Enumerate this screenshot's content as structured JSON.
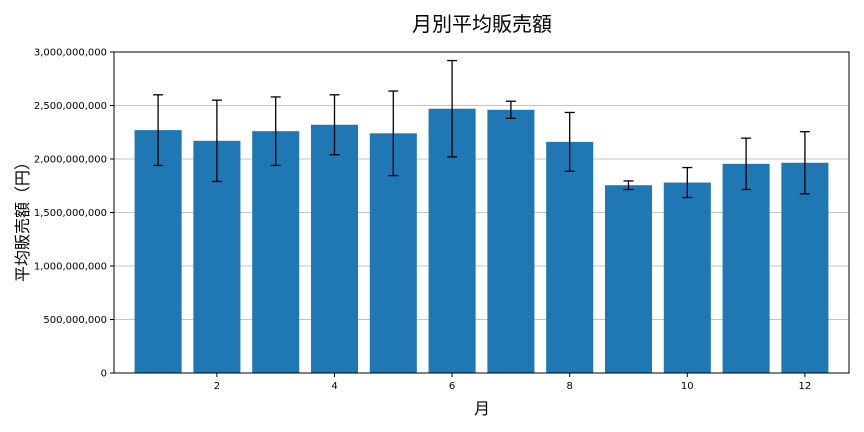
{
  "chart_data": {
    "type": "bar",
    "title": "月別平均販売額",
    "xlabel": "月",
    "ylabel": "平均販売額（円）",
    "x": [
      1,
      2,
      3,
      4,
      5,
      6,
      7,
      8,
      9,
      10,
      11,
      12
    ],
    "values": [
      2270000000,
      2170000000,
      2260000000,
      2320000000,
      2240000000,
      2470000000,
      2460000000,
      2160000000,
      1755000000,
      1780000000,
      1955000000,
      1965000000
    ],
    "error": [
      330000000,
      380000000,
      320000000,
      280000000,
      395000000,
      450000000,
      80000000,
      275000000,
      40000000,
      140000000,
      240000000,
      290000000
    ],
    "xlim": [
      0.25,
      12.75
    ],
    "ylim": [
      0,
      3000000000
    ],
    "xticks": [
      2,
      4,
      6,
      8,
      10,
      12
    ],
    "xtick_labels": [
      "2",
      "4",
      "6",
      "8",
      "10",
      "12"
    ],
    "yticks": [
      0,
      500000000,
      1000000000,
      1500000000,
      2000000000,
      2500000000,
      3000000000
    ],
    "ytick_labels": [
      "0",
      "500,000,000",
      "1,000,000,000",
      "1,500,000,000",
      "2,000,000,000",
      "2,500,000,000",
      "3,000,000,000"
    ],
    "grid": "y",
    "colors": {
      "bar": "#1f77b4",
      "error": "#000000",
      "grid": "#b0b0b0",
      "axis": "#000000"
    }
  }
}
